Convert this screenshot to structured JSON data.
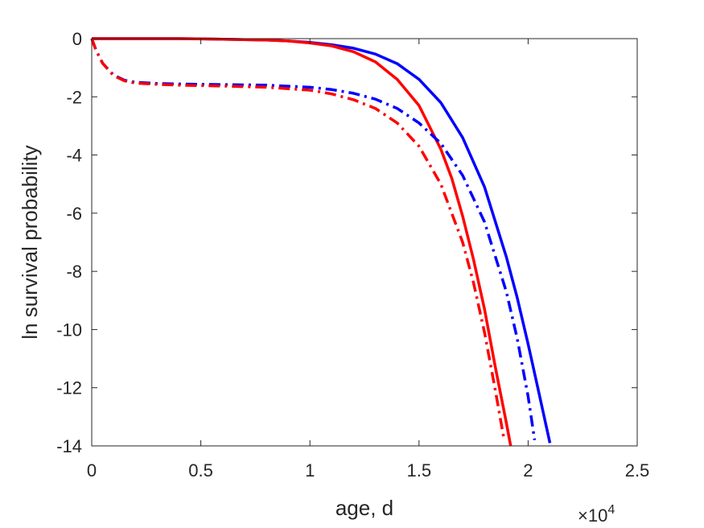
{
  "chart_data": {
    "type": "line",
    "xlabel": "age, d",
    "ylabel": "ln survival probability",
    "x_multiplier": {
      "times": "×",
      "base": "10",
      "exponent": "4"
    },
    "xlim": [
      0,
      25000
    ],
    "ylim": [
      -14,
      0
    ],
    "x_ticks": [
      0,
      5000,
      10000,
      15000,
      20000,
      25000
    ],
    "x_tick_labels": [
      "0",
      "0.5",
      "1",
      "1.5",
      "2",
      "2.5"
    ],
    "y_ticks": [
      0,
      -2,
      -4,
      -6,
      -8,
      -10,
      -12,
      -14
    ],
    "y_tick_labels": [
      "0",
      "-2",
      "-4",
      "-6",
      "-8",
      "-10",
      "-12",
      "-14"
    ],
    "grid": false,
    "series": [
      {
        "color": "#0000ff",
        "style": "solid",
        "x": [
          0,
          2000,
          4000,
          6000,
          8000,
          9000,
          10000,
          11000,
          12000,
          13000,
          14000,
          15000,
          16000,
          17000,
          18000,
          19000,
          19500,
          20000,
          20500,
          21000
        ],
        "y": [
          0,
          0,
          0,
          -0.02,
          -0.05,
          -0.08,
          -0.13,
          -0.21,
          -0.33,
          -0.53,
          -0.86,
          -1.4,
          -2.2,
          -3.4,
          -5.1,
          -7.5,
          -8.9,
          -10.5,
          -12.2,
          -13.9
        ]
      },
      {
        "color": "#ff0000",
        "style": "solid",
        "x": [
          0,
          2000,
          4000,
          6000,
          8000,
          9000,
          10000,
          11000,
          12000,
          13000,
          14000,
          15000,
          16000,
          16500,
          17000,
          17500,
          18000,
          18500,
          19000,
          19200
        ],
        "y": [
          0,
          0,
          0,
          -0.02,
          -0.05,
          -0.08,
          -0.15,
          -0.25,
          -0.45,
          -0.8,
          -1.4,
          -2.3,
          -3.8,
          -4.8,
          -6.1,
          -7.6,
          -9.3,
          -11.3,
          -13.2,
          -14
        ]
      },
      {
        "color": "#0000ff",
        "style": "dashdot",
        "x": [
          0,
          200,
          500,
          1000,
          1500,
          2000,
          3000,
          4000,
          6000,
          8000,
          10000,
          11000,
          12000,
          13000,
          14000,
          15000,
          16000,
          17000,
          18000,
          19000,
          19500,
          20000,
          20300
        ],
        "y": [
          0,
          -0.4,
          -0.85,
          -1.25,
          -1.43,
          -1.5,
          -1.54,
          -1.56,
          -1.58,
          -1.6,
          -1.67,
          -1.75,
          -1.88,
          -2.08,
          -2.4,
          -2.9,
          -3.6,
          -4.7,
          -6.3,
          -8.7,
          -10.3,
          -12.3,
          -13.8
        ]
      },
      {
        "color": "#ff0000",
        "style": "dashdot",
        "x": [
          0,
          200,
          500,
          1000,
          1500,
          2000,
          3000,
          4000,
          6000,
          8000,
          10000,
          11000,
          12000,
          13000,
          14000,
          15000,
          16000,
          17000,
          17500,
          18000,
          18500,
          18900
        ],
        "y": [
          0,
          -0.4,
          -0.85,
          -1.27,
          -1.45,
          -1.53,
          -1.57,
          -1.6,
          -1.63,
          -1.67,
          -1.77,
          -1.9,
          -2.1,
          -2.4,
          -2.9,
          -3.7,
          -5.0,
          -7.0,
          -8.4,
          -10.1,
          -12.1,
          -13.8
        ]
      }
    ]
  }
}
